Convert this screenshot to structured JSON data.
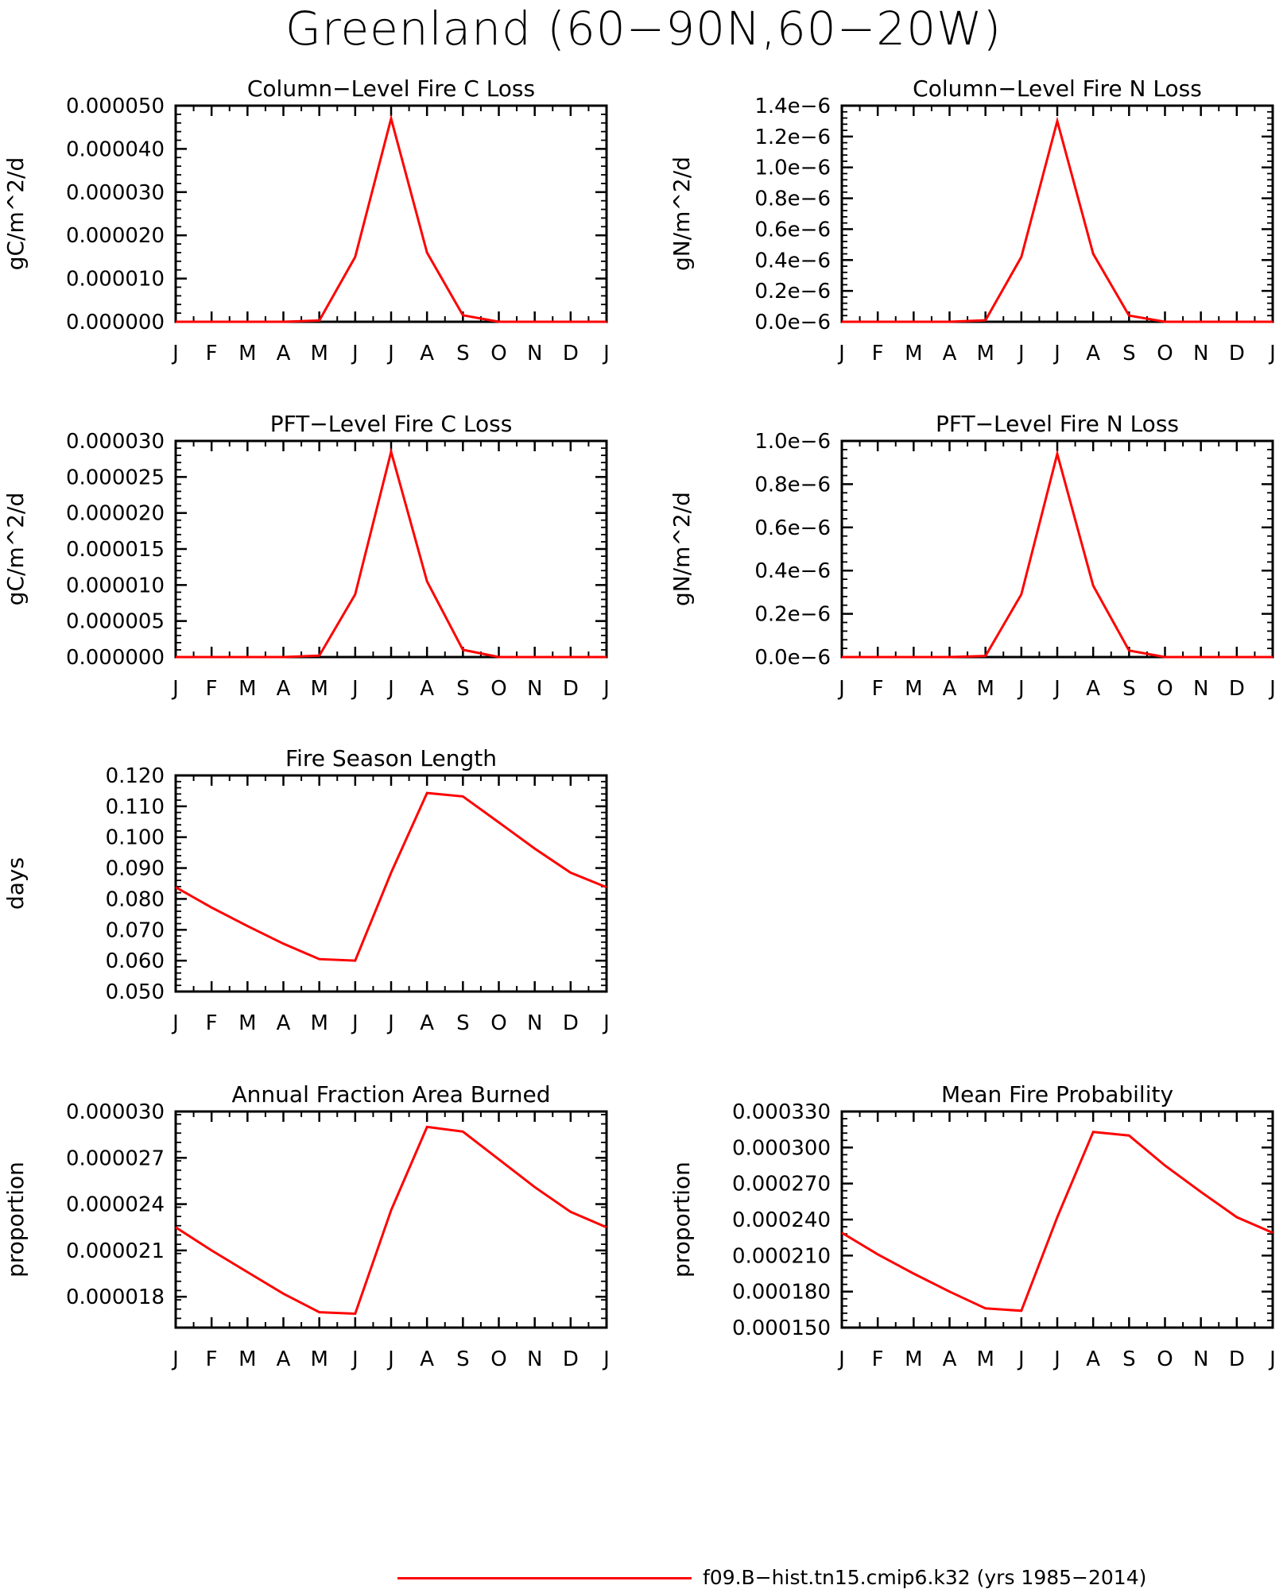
{
  "title": "Greenland (60−90N,60−20W)",
  "colors": {
    "series": "#ff0000",
    "axis": "#000000"
  },
  "chart_data": [
    {
      "type": "line",
      "title": "Column−Level Fire C Loss",
      "ylabel": "gC/m^2/d",
      "xlabel": "",
      "categories": [
        "J",
        "F",
        "M",
        "A",
        "M",
        "J",
        "J",
        "A",
        "S",
        "O",
        "N",
        "D",
        "J"
      ],
      "yticks": [
        "0.000000",
        "0.000010",
        "0.000020",
        "0.000030",
        "0.000040",
        "0.000050"
      ],
      "ylim": [
        0,
        5e-05
      ],
      "series": [
        {
          "name": "f09.B−hist.tn15.cmip6.k32 (yrs 1985−2014)",
          "values": [
            0,
            0,
            0,
            0,
            3e-07,
            1.5e-05,
            4.7e-05,
            1.6e-05,
            1.5e-06,
            0,
            0,
            0,
            0
          ]
        }
      ]
    },
    {
      "type": "line",
      "title": "Column−Level Fire N Loss",
      "ylabel": "gN/m^2/d",
      "xlabel": "",
      "categories": [
        "J",
        "F",
        "M",
        "A",
        "M",
        "J",
        "J",
        "A",
        "S",
        "O",
        "N",
        "D",
        "J"
      ],
      "yticks": [
        "0.0e−6",
        "0.2e−6",
        "0.4e−6",
        "0.6e−6",
        "0.8e−6",
        "1.0e−6",
        "1.2e−6",
        "1.4e−6"
      ],
      "ylim": [
        0,
        1.4e-06
      ],
      "series": [
        {
          "name": "f09.B−hist.tn15.cmip6.k32 (yrs 1985−2014)",
          "values": [
            0,
            0,
            0,
            0,
            1e-08,
            4.2e-07,
            1.3e-06,
            4.4e-07,
            4e-08,
            0,
            0,
            0,
            0
          ]
        }
      ]
    },
    {
      "type": "line",
      "title": "PFT−Level Fire C Loss",
      "ylabel": "gC/m^2/d",
      "xlabel": "",
      "categories": [
        "J",
        "F",
        "M",
        "A",
        "M",
        "J",
        "J",
        "A",
        "S",
        "O",
        "N",
        "D",
        "J"
      ],
      "yticks": [
        "0.000000",
        "0.000005",
        "0.000010",
        "0.000015",
        "0.000020",
        "0.000025",
        "0.000030"
      ],
      "ylim": [
        0,
        3e-05
      ],
      "series": [
        {
          "name": "f09.B−hist.tn15.cmip6.k32 (yrs 1985−2014)",
          "values": [
            0,
            0,
            0,
            0,
            2e-07,
            8.7e-06,
            2.85e-05,
            1.05e-05,
            1e-06,
            0,
            0,
            0,
            0
          ]
        }
      ]
    },
    {
      "type": "line",
      "title": "PFT−Level Fire N Loss",
      "ylabel": "gN/m^2/d",
      "xlabel": "",
      "categories": [
        "J",
        "F",
        "M",
        "A",
        "M",
        "J",
        "J",
        "A",
        "S",
        "O",
        "N",
        "D",
        "J"
      ],
      "yticks": [
        "0.0e−6",
        "0.2e−6",
        "0.4e−6",
        "0.6e−6",
        "0.8e−6",
        "1.0e−6"
      ],
      "ylim": [
        0,
        1e-06
      ],
      "series": [
        {
          "name": "f09.B−hist.tn15.cmip6.k32 (yrs 1985−2014)",
          "values": [
            0,
            0,
            0,
            0,
            5e-09,
            2.9e-07,
            9.4e-07,
            3.3e-07,
            3e-08,
            0,
            0,
            0,
            0
          ]
        }
      ]
    },
    {
      "type": "line",
      "title": "Fire Season Length",
      "ylabel": "days",
      "xlabel": "",
      "categories": [
        "J",
        "F",
        "M",
        "A",
        "M",
        "J",
        "J",
        "A",
        "S",
        "O",
        "N",
        "D",
        "J"
      ],
      "yticks": [
        "0.050",
        "0.060",
        "0.070",
        "0.080",
        "0.090",
        "0.100",
        "0.110",
        "0.120"
      ],
      "ylim": [
        0.05,
        0.12
      ],
      "series": [
        {
          "name": "f09.B−hist.tn15.cmip6.k32 (yrs 1985−2014)",
          "values": [
            0.0838,
            0.0772,
            0.0712,
            0.0655,
            0.0605,
            0.06,
            0.0885,
            0.1143,
            0.1132,
            0.1048,
            0.0963,
            0.0885,
            0.0838
          ]
        }
      ]
    },
    {
      "type": "line",
      "title": "Annual Fraction Area Burned",
      "ylabel": "proportion",
      "xlabel": "",
      "categories": [
        "J",
        "F",
        "M",
        "A",
        "M",
        "J",
        "J",
        "A",
        "S",
        "O",
        "N",
        "D",
        "J"
      ],
      "yticks": [
        "0.000018",
        "0.000021",
        "0.000024",
        "0.000027",
        "0.000030"
      ],
      "ylim": [
        1.6e-05,
        3e-05
      ],
      "series": [
        {
          "name": "f09.B−hist.tn15.cmip6.k32 (yrs 1985−2014)",
          "values": [
            2.25e-05,
            2.1e-05,
            1.96e-05,
            1.82e-05,
            1.7e-05,
            1.69e-05,
            2.36e-05,
            2.9e-05,
            2.87e-05,
            2.69e-05,
            2.51e-05,
            2.35e-05,
            2.25e-05
          ]
        }
      ]
    },
    {
      "type": "line",
      "title": "Mean Fire Probability",
      "ylabel": "proportion",
      "xlabel": "",
      "categories": [
        "J",
        "F",
        "M",
        "A",
        "M",
        "J",
        "J",
        "A",
        "S",
        "O",
        "N",
        "D",
        "J"
      ],
      "yticks": [
        "0.000150",
        "0.000180",
        "0.000210",
        "0.000240",
        "0.000270",
        "0.000300",
        "0.000330"
      ],
      "ylim": [
        0.00015,
        0.00033
      ],
      "series": [
        {
          "name": "f09.B−hist.tn15.cmip6.k32 (yrs 1985−2014)",
          "values": [
            0.000229,
            0.000211,
            0.000195,
            0.00018,
            0.000166,
            0.000164,
            0.000242,
            0.000313,
            0.00031,
            0.000285,
            0.000263,
            0.000242,
            0.000229
          ]
        }
      ]
    }
  ],
  "legend": {
    "label": "f09.B−hist.tn15.cmip6.k32 (yrs 1985−2014)"
  }
}
